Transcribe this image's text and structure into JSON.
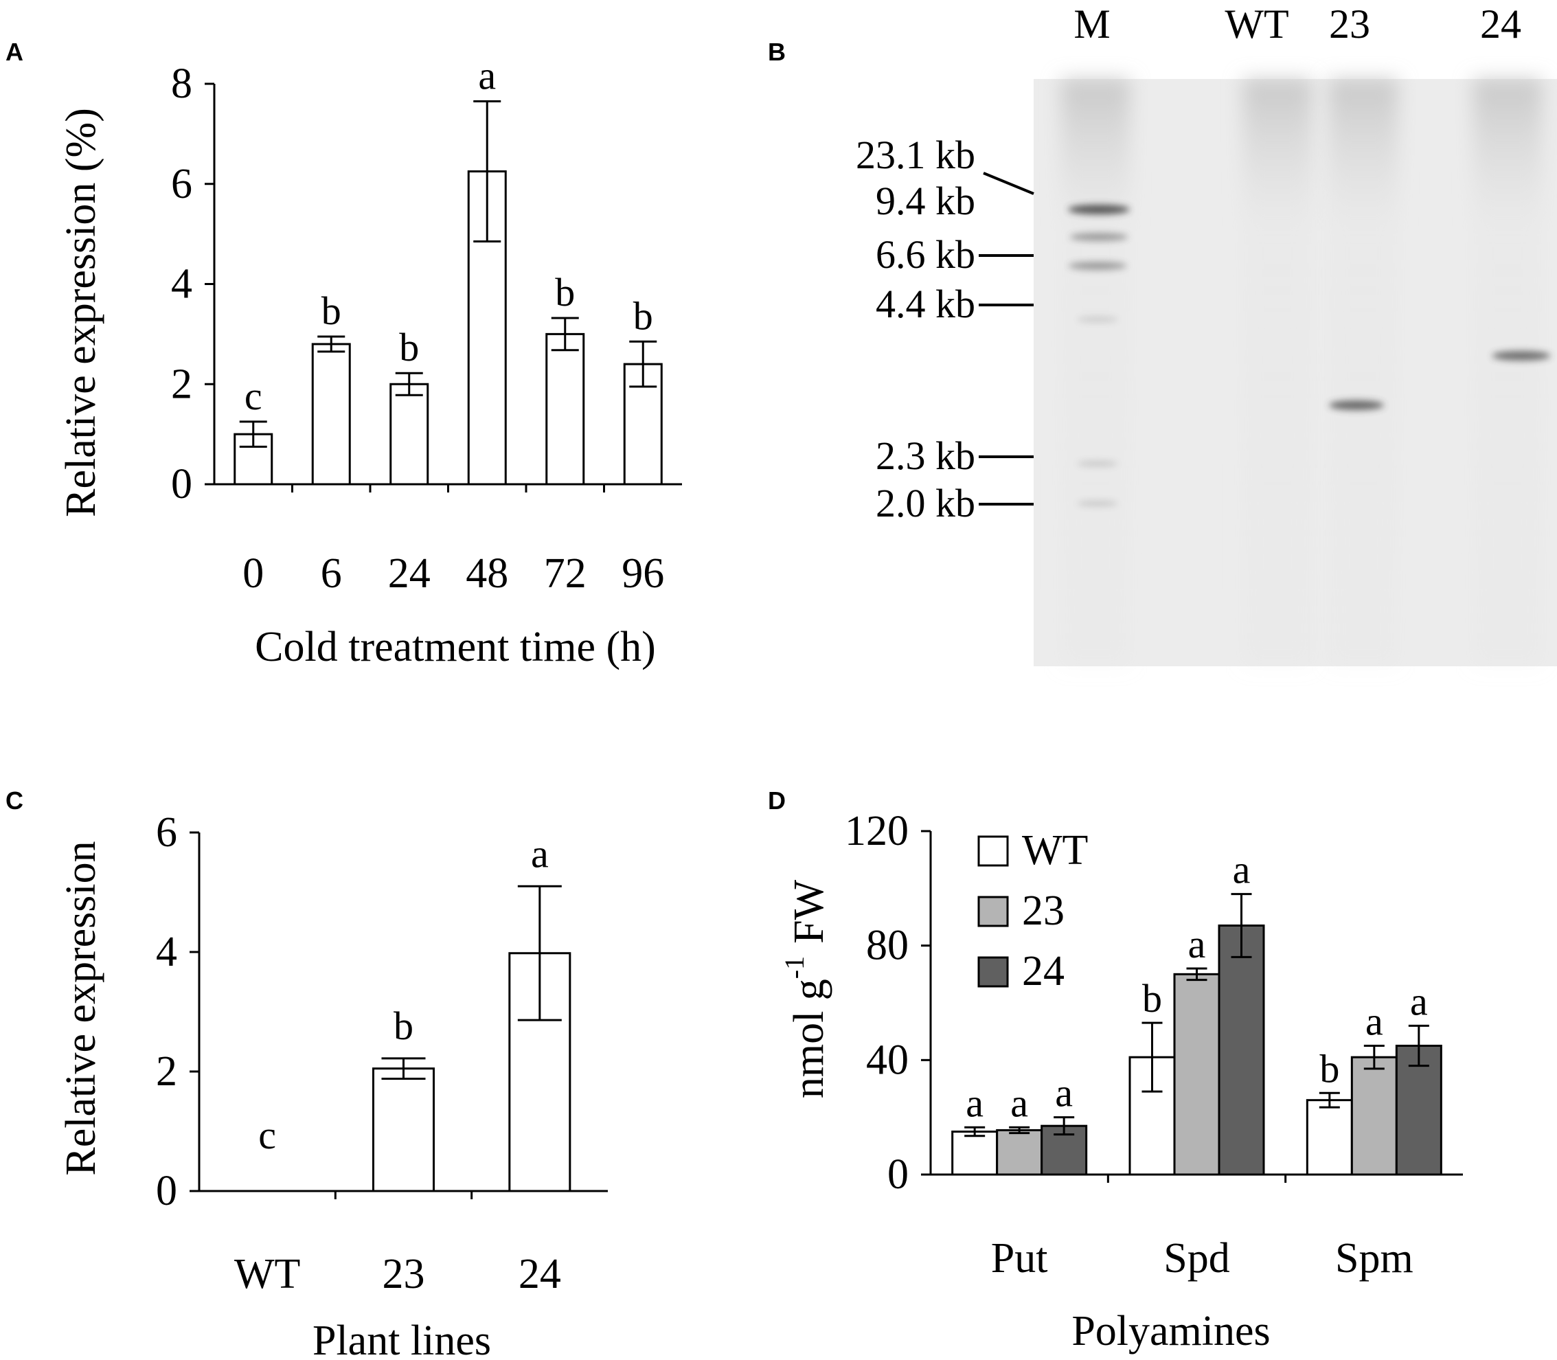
{
  "panels": {
    "a": "A",
    "b": "B",
    "c": "C",
    "d": "D"
  },
  "chart_data": [
    {
      "panel": "A",
      "type": "bar",
      "categories": [
        "0",
        "6",
        "24",
        "48",
        "72",
        "96"
      ],
      "values": [
        1.0,
        2.8,
        2.0,
        6.25,
        3.0,
        2.4
      ],
      "errors": [
        0.25,
        0.15,
        0.22,
        1.4,
        0.32,
        0.45
      ],
      "significance": [
        "c",
        "b",
        "b",
        "a",
        "b",
        "b"
      ],
      "xlabel": "Cold treatment time (h)",
      "ylabel": "Relative expression (%)",
      "ylim": [
        0,
        8
      ],
      "yticks": [
        "0",
        "2",
        "4",
        "6",
        "8"
      ],
      "colors": {
        "bar_fill": "#ffffff",
        "bar_stroke": "#000000"
      }
    },
    {
      "panel": "C",
      "type": "bar",
      "categories": [
        "WT",
        "23",
        "24"
      ],
      "values": [
        0,
        2.05,
        3.98
      ],
      "errors": [
        0,
        0.17,
        1.12
      ],
      "significance": [
        "c",
        "b",
        "a"
      ],
      "xlabel": "Plant lines",
      "ylabel": "Relative expression",
      "ylim": [
        0,
        6
      ],
      "yticks": [
        "0",
        "2",
        "4",
        "6"
      ],
      "colors": {
        "bar_fill": "#ffffff",
        "bar_stroke": "#000000"
      }
    },
    {
      "panel": "D",
      "type": "bar",
      "categories": [
        "Put",
        "Spd",
        "Spm"
      ],
      "series": [
        {
          "name": "WT",
          "color": "#ffffff",
          "values": [
            15,
            41,
            26
          ],
          "errors": [
            1.5,
            12,
            2.5
          ],
          "significance": [
            "a",
            "b",
            "b"
          ]
        },
        {
          "name": "23",
          "color": "#b4b4b4",
          "values": [
            15.5,
            70,
            41
          ],
          "errors": [
            1,
            2,
            4
          ],
          "significance": [
            "a",
            "a",
            "a"
          ]
        },
        {
          "name": "24",
          "color": "#606060",
          "values": [
            17,
            87,
            45
          ],
          "errors": [
            3,
            11,
            7
          ],
          "significance": [
            "a",
            "a",
            "a"
          ]
        }
      ],
      "xlabel": "Polyamines",
      "ylabel": "nmol g",
      "ylabel_sup": "-1",
      "ylabel_unit": "FW",
      "ylim": [
        0,
        120
      ],
      "yticks": [
        "0",
        "40",
        "80",
        "120"
      ],
      "legend": "top-left"
    }
  ],
  "blot": {
    "lanes": [
      "M",
      "WT",
      "23",
      "24"
    ],
    "markers": [
      "23.1 kb",
      "9.4 kb",
      "6.6 kb",
      "4.4 kb",
      "2.3 kb",
      "2.0 kb"
    ],
    "colors": {
      "background": "#ededed",
      "band": "#3c3c3c"
    }
  }
}
